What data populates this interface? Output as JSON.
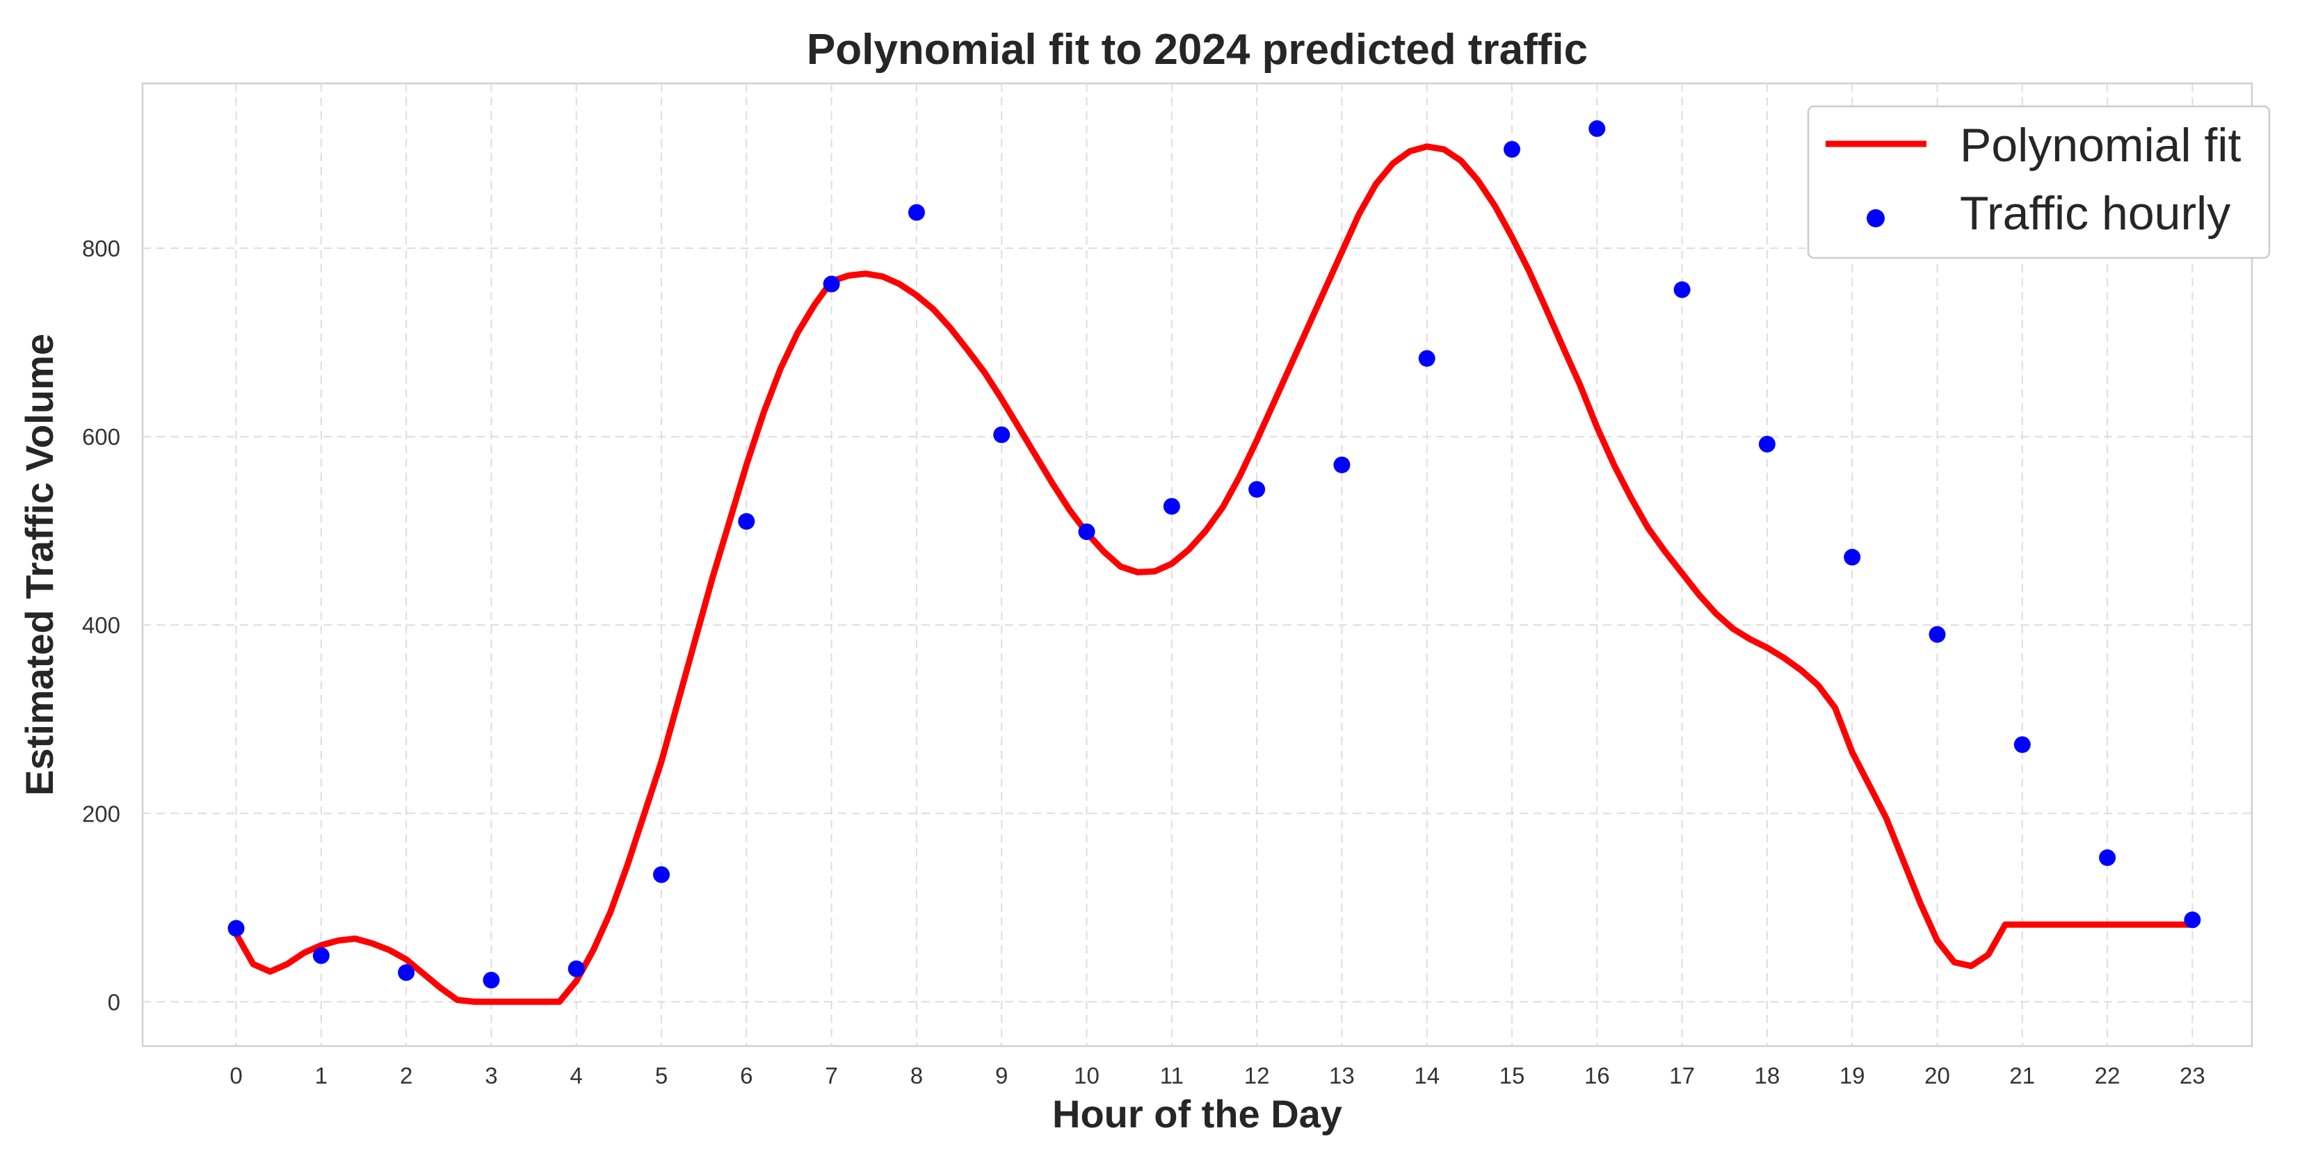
{
  "chart_data": {
    "type": "line",
    "title": "Polynomial fit to 2024 predicted traffic",
    "xlabel": "Hour of the Day",
    "ylabel": "Estimated Traffic Volume",
    "xlim": [
      -1.1,
      23.7
    ],
    "ylim": [
      -47,
      975
    ],
    "x_ticks": [
      0,
      1,
      2,
      3,
      4,
      5,
      6,
      7,
      8,
      9,
      10,
      11,
      12,
      13,
      14,
      15,
      16,
      17,
      18,
      19,
      20,
      21,
      22,
      23
    ],
    "y_ticks": [
      0,
      200,
      400,
      600,
      800
    ],
    "grid": true,
    "grid_style": "dashed",
    "legend_position": "top-right",
    "series": [
      {
        "name": "Polynomial fit",
        "kind": "line",
        "color": "#ff0000",
        "x": [
          0,
          0.2,
          0.4,
          0.6,
          0.8,
          1.0,
          1.2,
          1.4,
          1.6,
          1.8,
          2.0,
          2.2,
          2.4,
          2.6,
          2.8,
          3.0,
          3.2,
          3.4,
          3.6,
          3.8,
          4.0,
          4.2,
          4.4,
          4.6,
          4.8,
          5.0,
          5.2,
          5.4,
          5.6,
          5.8,
          6.0,
          6.2,
          6.4,
          6.6,
          6.8,
          7.0,
          7.2,
          7.4,
          7.6,
          7.8,
          8.0,
          8.2,
          8.4,
          8.6,
          8.8,
          9.0,
          9.2,
          9.4,
          9.6,
          9.8,
          10.0,
          10.2,
          10.4,
          10.6,
          10.8,
          11.0,
          11.2,
          11.4,
          11.6,
          11.8,
          12.0,
          12.2,
          12.4,
          12.6,
          12.8,
          13.0,
          13.2,
          13.4,
          13.6,
          13.8,
          14.0,
          14.2,
          14.4,
          14.6,
          14.8,
          15.0,
          15.2,
          15.4,
          15.6,
          15.8,
          16.0,
          16.2,
          16.4,
          16.6,
          16.8,
          17.0,
          17.2,
          17.4,
          17.6,
          17.8,
          18.0,
          18.2,
          18.4,
          18.6,
          18.8,
          19.0,
          19.2,
          19.4,
          19.6,
          19.8,
          20.0,
          20.2,
          20.4,
          20.6,
          20.8,
          21.0,
          21.2,
          21.4,
          21.6,
          21.8,
          22.0,
          22.2,
          22.4,
          22.6,
          22.8,
          23.0
        ],
        "y": [
          72,
          40,
          32,
          40,
          52,
          60,
          65,
          67,
          62,
          55,
          45,
          30,
          15,
          2,
          0,
          0,
          0,
          0,
          0,
          0,
          22,
          55,
          95,
          145,
          200,
          255,
          320,
          385,
          450,
          510,
          570,
          625,
          672,
          710,
          740,
          765,
          771,
          773,
          770,
          762,
          750,
          735,
          715,
          692,
          668,
          640,
          610,
          580,
          550,
          522,
          498,
          478,
          462,
          456,
          457,
          465,
          480,
          500,
          525,
          558,
          596,
          636,
          676,
          716,
          756,
          796,
          836,
          868,
          890,
          903,
          908,
          905,
          893,
          872,
          845,
          812,
          776,
          736,
          695,
          655,
          610,
          570,
          535,
          503,
          478,
          455,
          432,
          412,
          396,
          385,
          376,
          365,
          352,
          336,
          312,
          265,
          230,
          195,
          150,
          105,
          65,
          42,
          38,
          50,
          82,
          82,
          82,
          82,
          82,
          82,
          82,
          82,
          82,
          82,
          82,
          82
        ]
      },
      {
        "name": "Traffic hourly",
        "kind": "scatter",
        "color": "#0000ff",
        "x": [
          0,
          1,
          2,
          3,
          4,
          5,
          6,
          7,
          8,
          9,
          10,
          11,
          12,
          13,
          14,
          15,
          16,
          17,
          18,
          19,
          20,
          21,
          22,
          23
        ],
        "y": [
          78,
          49,
          31,
          23,
          35,
          135,
          510,
          762,
          838,
          602,
          499,
          526,
          544,
          570,
          683,
          905,
          927,
          756,
          592,
          472,
          390,
          273,
          153,
          87
        ]
      }
    ]
  }
}
